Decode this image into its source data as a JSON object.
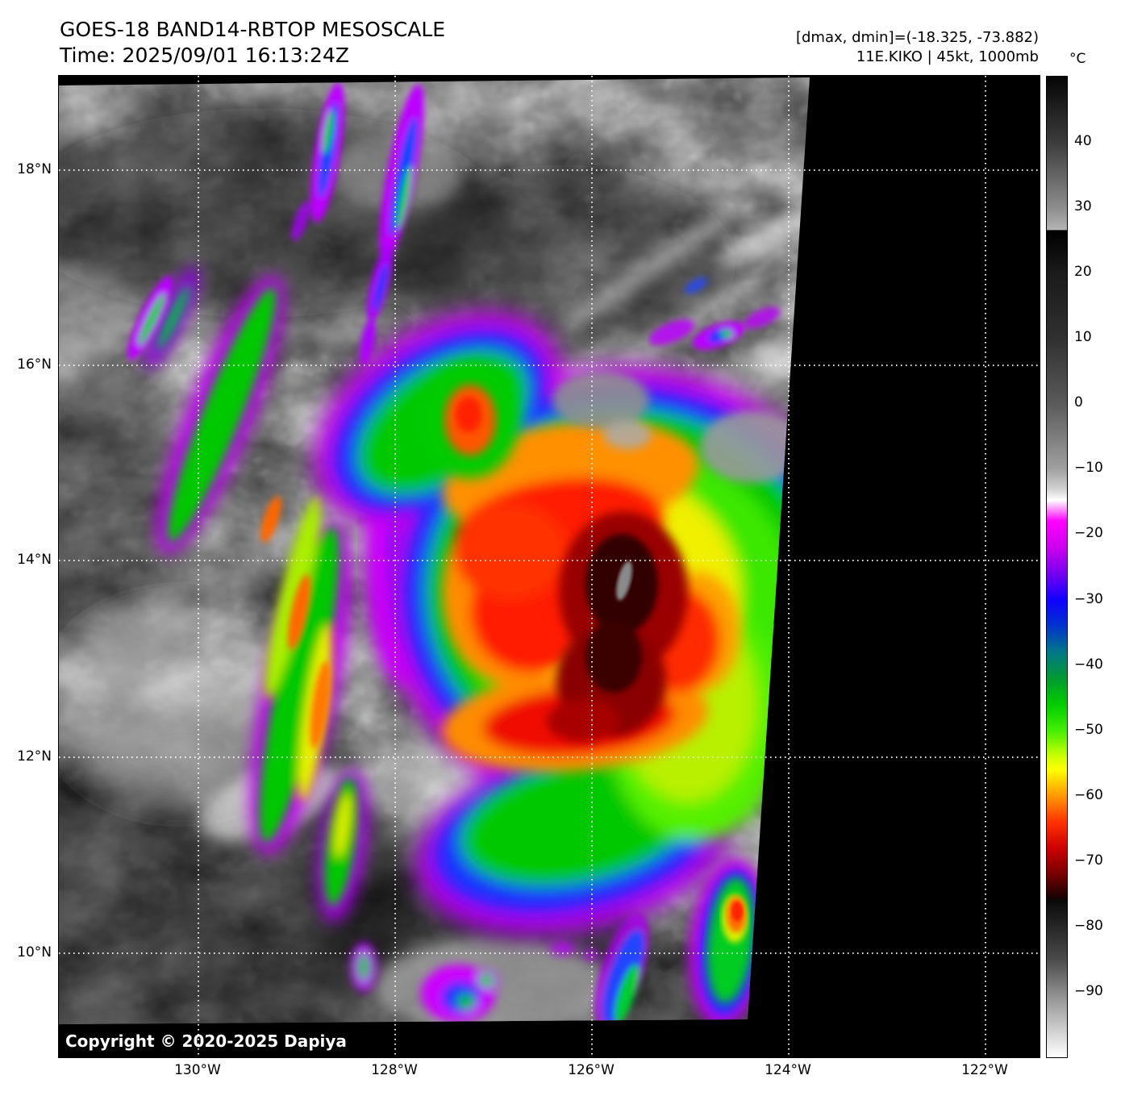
{
  "header": {
    "title": "GOES-18 BAND14-RBTOP MESOSCALE",
    "time": "Time: 2025/09/01 16:13:24Z",
    "dmax_dmin": "[dmax, dmin]=(-18.325, -73.882)",
    "storm": "11E.KIKO | 45kt, 1000mb"
  },
  "map": {
    "lat_ticks": [
      "18°N",
      "16°N",
      "14°N",
      "12°N",
      "10°N"
    ],
    "lon_ticks": [
      "130°W",
      "128°W",
      "126°W",
      "124°W",
      "122°W"
    ],
    "copyright": "Copyright © 2020-2025 Dapiya"
  },
  "colorbar": {
    "unit": "°C",
    "max": 50,
    "min": -100,
    "ticks": [
      {
        "label": "40",
        "value": 40
      },
      {
        "label": "30",
        "value": 30
      },
      {
        "label": "20",
        "value": 20
      },
      {
        "label": "10",
        "value": 10
      },
      {
        "label": "0",
        "value": 0
      },
      {
        "label": "−10",
        "value": -10
      },
      {
        "label": "−20",
        "value": -20
      },
      {
        "label": "−30",
        "value": -30
      },
      {
        "label": "−40",
        "value": -40
      },
      {
        "label": "−50",
        "value": -50
      },
      {
        "label": "−60",
        "value": -60
      },
      {
        "label": "−70",
        "value": -70
      },
      {
        "label": "−80",
        "value": -80
      },
      {
        "label": "−90",
        "value": -90
      }
    ]
  }
}
